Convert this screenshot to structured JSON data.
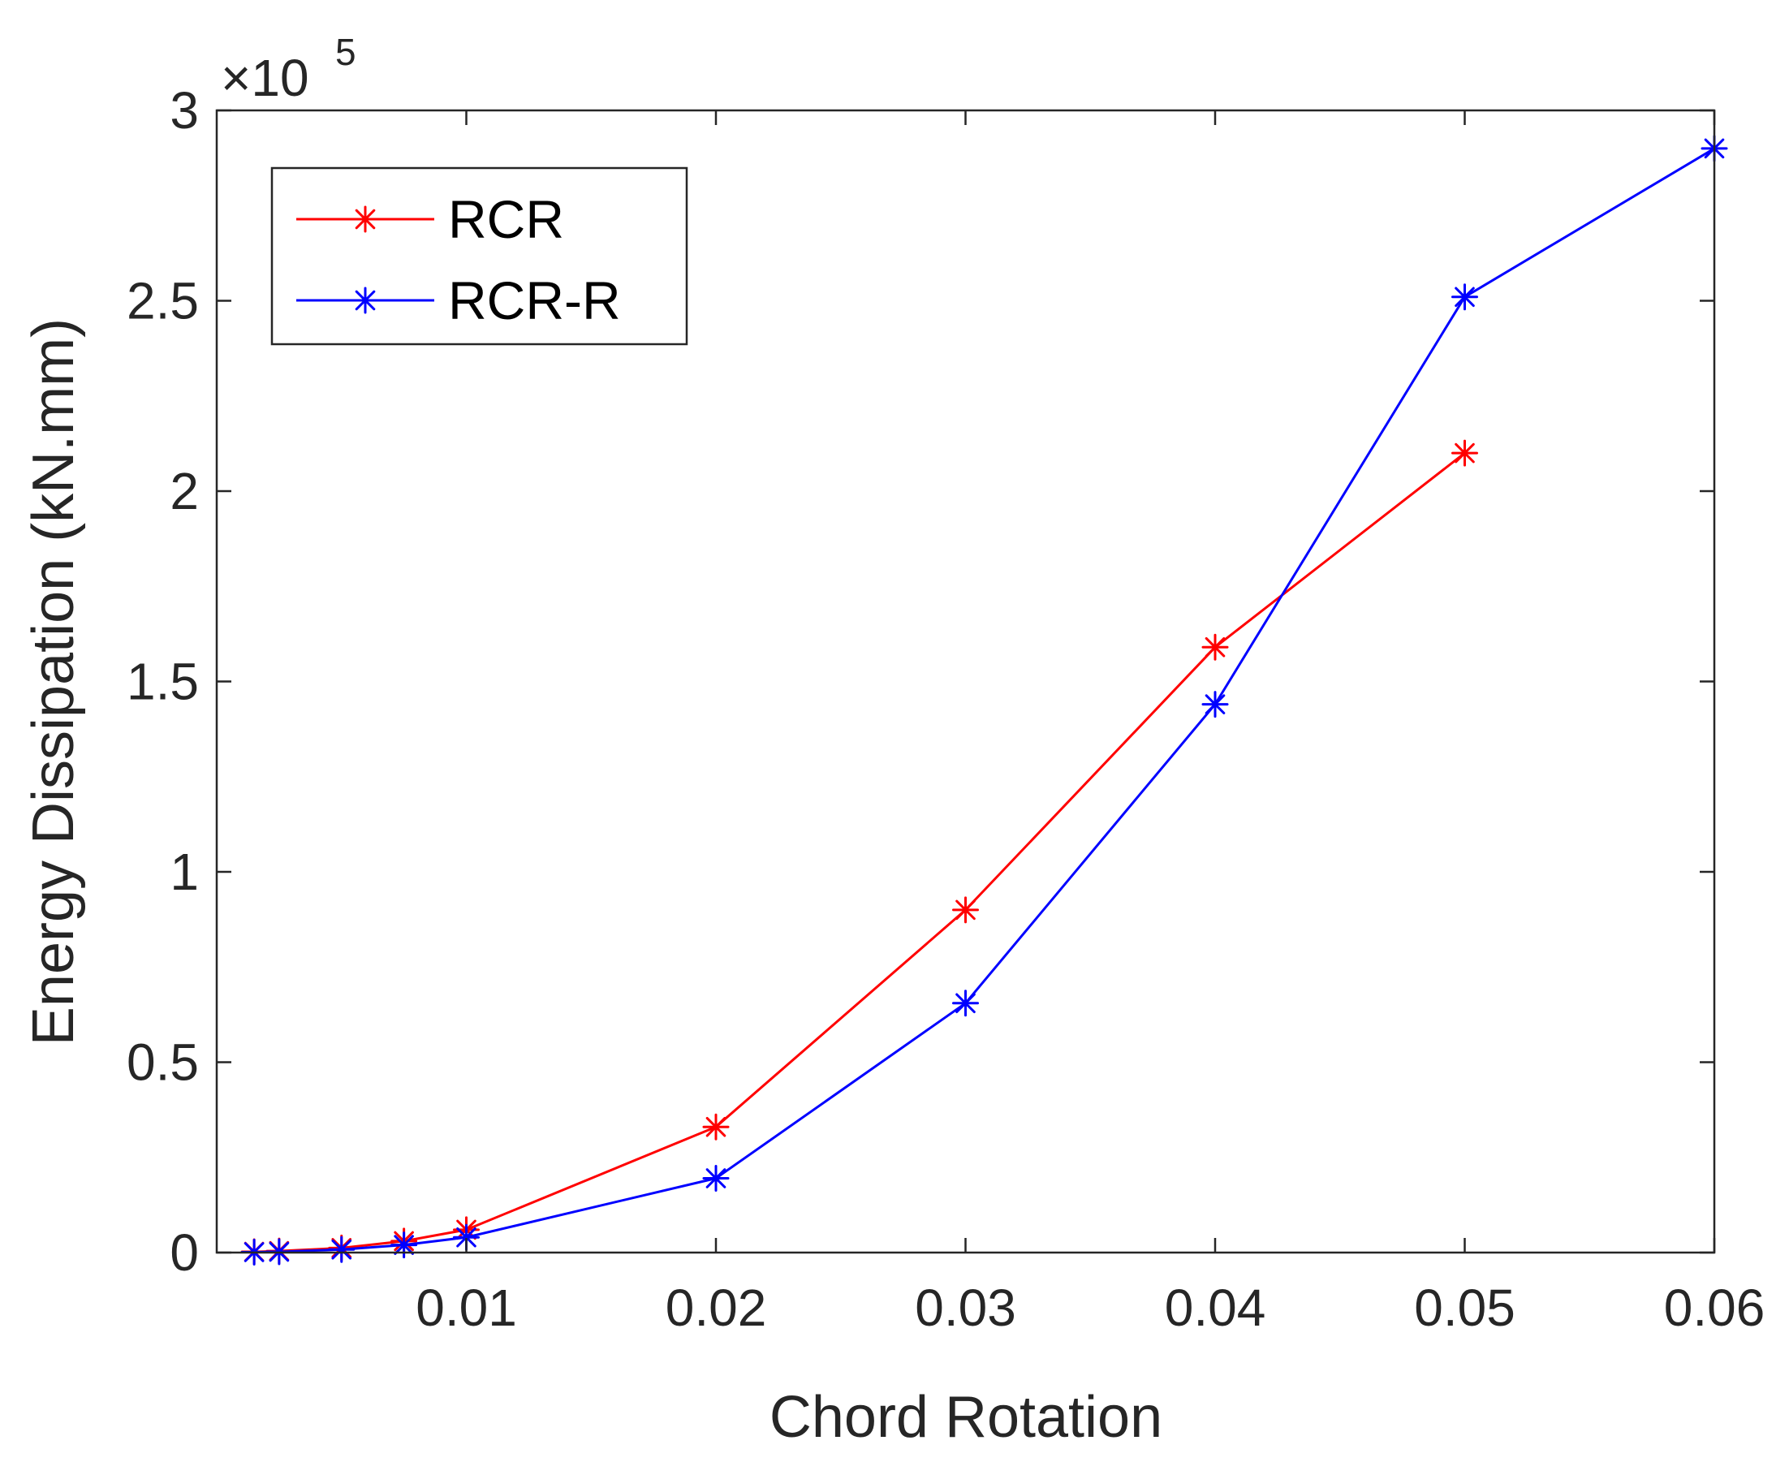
{
  "chart_data": {
    "type": "line",
    "title": "",
    "xlabel": "Chord Rotation",
    "ylabel": "Energy Dissipation (kN.mm)",
    "xlim": [
      0.0,
      0.06
    ],
    "ylim": [
      0,
      300000
    ],
    "x_ticks": [
      0.01,
      0.02,
      0.03,
      0.04,
      0.05,
      0.06
    ],
    "x_tick_labels": [
      "0.01",
      "0.02",
      "0.03",
      "0.04",
      "0.05",
      "0.06"
    ],
    "y_ticks": [
      0,
      50000,
      100000,
      150000,
      200000,
      250000,
      300000
    ],
    "y_tick_labels": [
      "0",
      "0.5",
      "1",
      "1.5",
      "2",
      "2.5",
      "3"
    ],
    "y_exponent_prefix": "×10",
    "y_exponent_power": "5",
    "grid": false,
    "legend_position": "top-left",
    "series": [
      {
        "name": "RCR",
        "color": "#ff0000",
        "marker": "asterisk",
        "x": [
          0.0015,
          0.0025,
          0.005,
          0.0075,
          0.01,
          0.02,
          0.03,
          0.04,
          0.05
        ],
        "y": [
          200,
          400,
          1200,
          3000,
          6000,
          33000,
          90000,
          159000,
          210000
        ]
      },
      {
        "name": "RCR-R",
        "color": "#0000ff",
        "marker": "asterisk",
        "x": [
          0.0015,
          0.0025,
          0.005,
          0.0075,
          0.01,
          0.02,
          0.03,
          0.04,
          0.05,
          0.06
        ],
        "y": [
          100,
          200,
          800,
          2000,
          4000,
          19500,
          65500,
          144000,
          251000,
          290000
        ]
      }
    ]
  }
}
